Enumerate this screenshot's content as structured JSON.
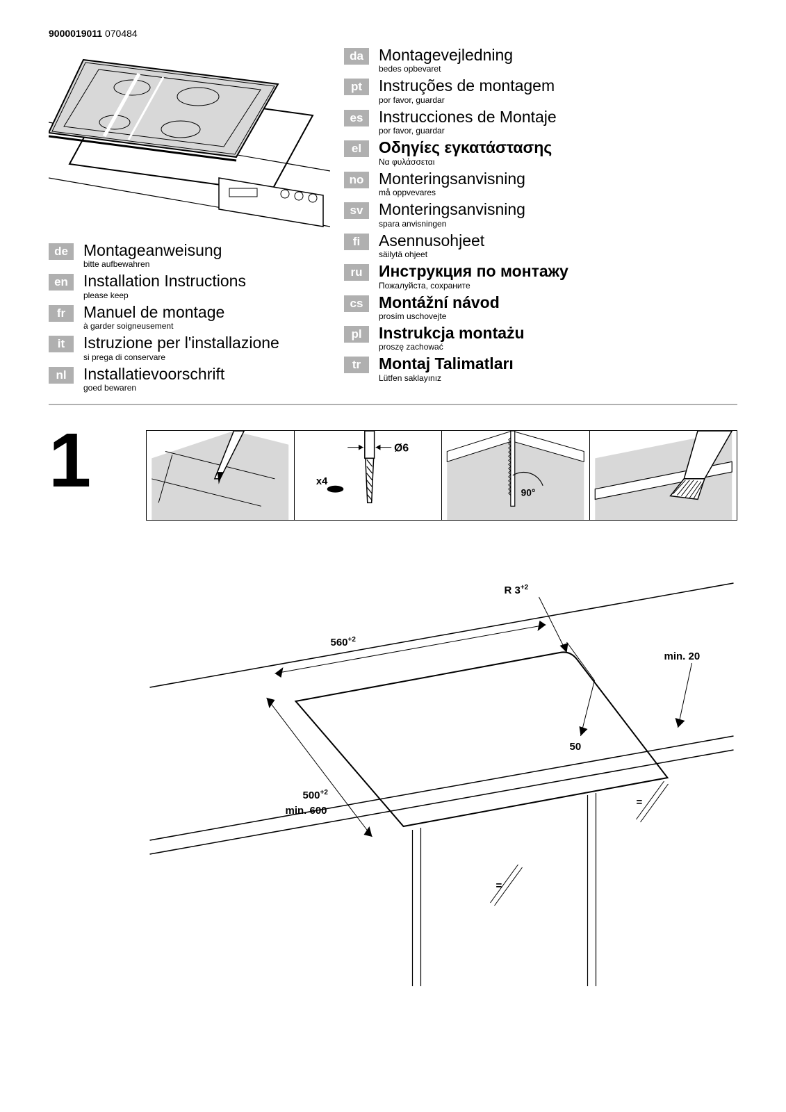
{
  "header": {
    "code1": "9000019011",
    "code2": "070484"
  },
  "left_languages": [
    {
      "code": "de",
      "title": "Montageanweisung",
      "sub": "bitte aufbewahren",
      "bold": false
    },
    {
      "code": "en",
      "title": "Installation Instructions",
      "sub": "please keep",
      "bold": false
    },
    {
      "code": "fr",
      "title": "Manuel de montage",
      "sub": "à garder soigneusement",
      "bold": false
    },
    {
      "code": "it",
      "title": "Istruzione per l'installazione",
      "sub": "si prega di conservare",
      "bold": false
    },
    {
      "code": "nl",
      "title": "Installatievoorschrift",
      "sub": "goed bewaren",
      "bold": false
    }
  ],
  "right_languages": [
    {
      "code": "da",
      "title": "Montagevejledning",
      "sub": "bedes opbevaret",
      "bold": false
    },
    {
      "code": "pt",
      "title": "Instruções de montagem",
      "sub": "por favor, guardar",
      "bold": false
    },
    {
      "code": "es",
      "title": "Instrucciones de Montaje",
      "sub": "por favor, guardar",
      "bold": false
    },
    {
      "code": "el",
      "title": "Οδηγίες εγκατάστασης",
      "sub": "Να φυλάσσεται",
      "bold": true
    },
    {
      "code": "no",
      "title": "Monteringsanvisning",
      "sub": "må oppvevares",
      "bold": false
    },
    {
      "code": "sv",
      "title": "Monteringsanvisning",
      "sub": "spara anvisningen",
      "bold": false
    },
    {
      "code": "fi",
      "title": "Asennusohjeet",
      "sub": "säilytä ohjeet",
      "bold": false
    },
    {
      "code": "ru",
      "title": "Инструкция по монтажу",
      "sub": "Пожалуйста, сохраните",
      "bold": true
    },
    {
      "code": "cs",
      "title": "Montážní návod",
      "sub": "prosím uschovejte",
      "bold": true
    },
    {
      "code": "pl",
      "title": "Instrukcja montażu",
      "sub": "proszę zachować",
      "bold": true
    },
    {
      "code": "tr",
      "title": "Montaj Talimatları",
      "sub": "Lütfen saklayınız",
      "bold": true
    }
  ],
  "step": {
    "number": "1",
    "strip": {
      "x4": "x4",
      "d6": "Ø6",
      "angle": "90°"
    },
    "cutout": {
      "width": "560",
      "width_tol": "+2",
      "depth_a": "500",
      "depth_a_tol": "+2",
      "depth_b": "min. 600",
      "radius": "R 3",
      "radius_tol": "+2",
      "edge": "50",
      "margin": "min. 20",
      "centered": "="
    }
  },
  "colors": {
    "badge_bg": "#b0b0b0",
    "rule": "#b0b0b0",
    "hob_fill": "#d8d8d8",
    "cooktop_fill": "#d8d8d8"
  }
}
